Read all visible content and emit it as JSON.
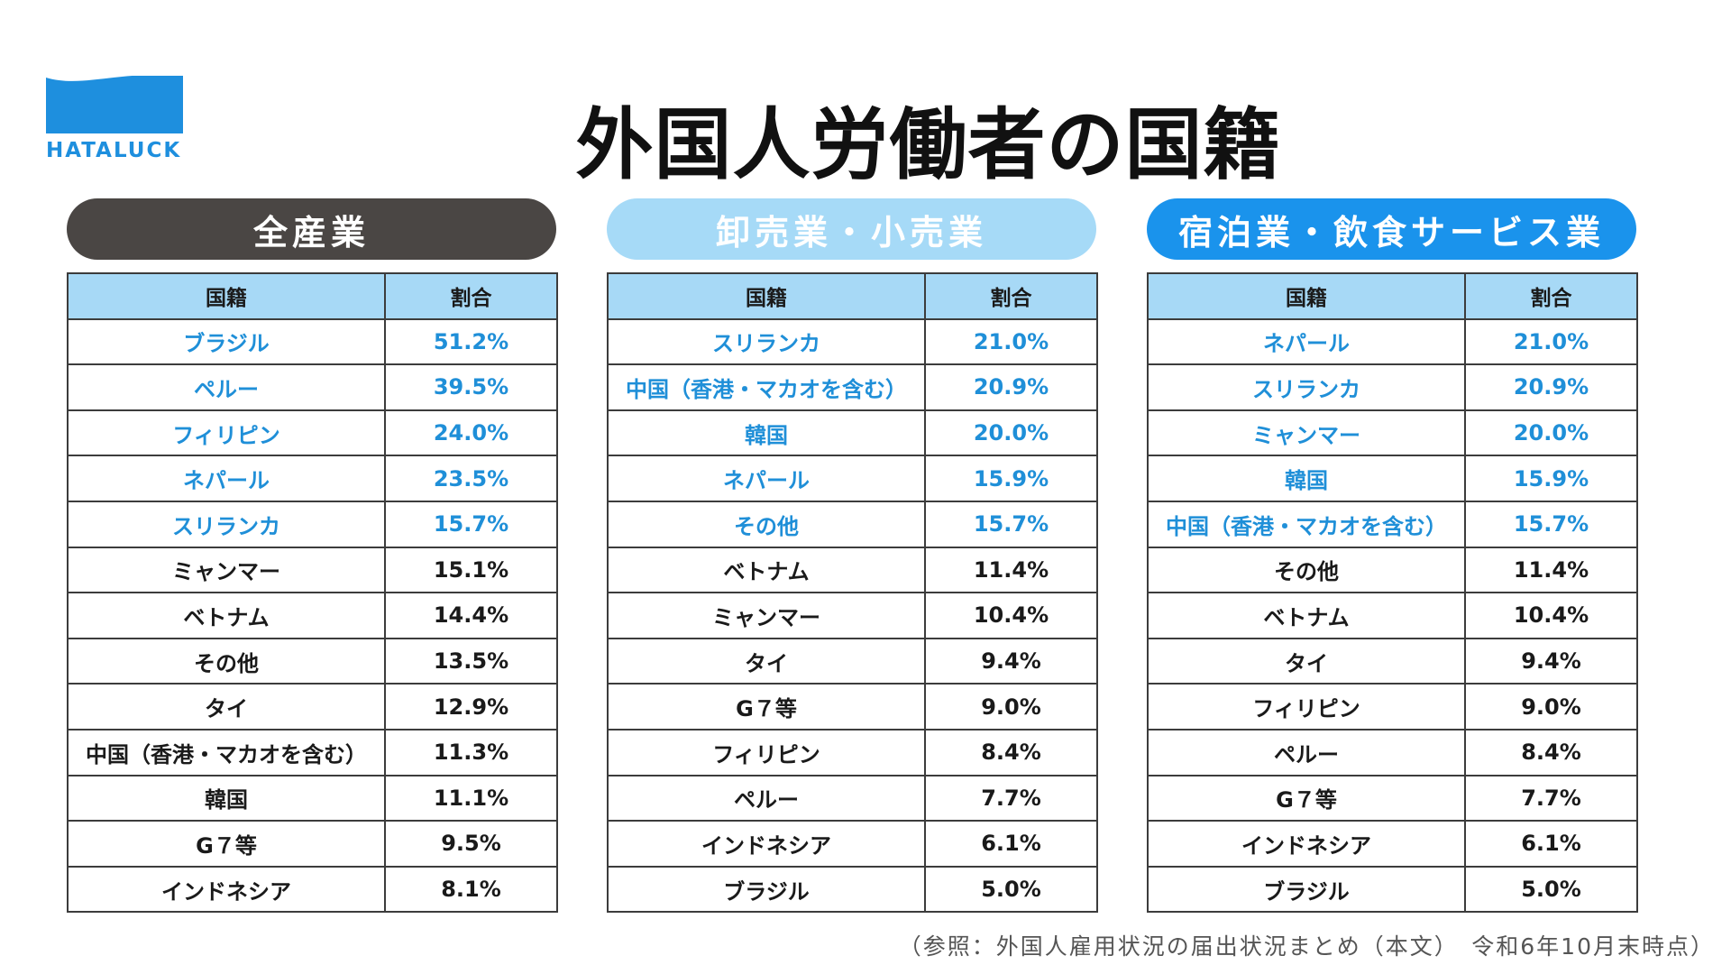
{
  "logo": {
    "text": "HATALUCK",
    "color": "#1e8fde"
  },
  "title": "外国人労働者の国籍",
  "highlight_color": "#1f8fd8",
  "tables": [
    {
      "heading": "全産業",
      "columns": [
        "国籍",
        "割合"
      ],
      "rows": [
        {
          "country": "ブラジル",
          "share": "51.2%",
          "highlight": true
        },
        {
          "country": "ペルー",
          "share": "39.5%",
          "highlight": true
        },
        {
          "country": "フィリピン",
          "share": "24.0%",
          "highlight": true
        },
        {
          "country": "ネパール",
          "share": "23.5%",
          "highlight": true
        },
        {
          "country": "スリランカ",
          "share": "15.7%",
          "highlight": true
        },
        {
          "country": "ミャンマー",
          "share": "15.1%",
          "highlight": false
        },
        {
          "country": "ベトナム",
          "share": "14.4%",
          "highlight": false
        },
        {
          "country": "その他",
          "share": "13.5%",
          "highlight": false
        },
        {
          "country": "タイ",
          "share": "12.9%",
          "highlight": false
        },
        {
          "country": "中国（香港・マカオを含む）",
          "share": "11.3%",
          "highlight": false
        },
        {
          "country": "韓国",
          "share": "11.1%",
          "highlight": false
        },
        {
          "country": "G７等",
          "share": "9.5%",
          "highlight": false
        },
        {
          "country": "インドネシア",
          "share": "8.1%",
          "highlight": false
        }
      ]
    },
    {
      "heading": "卸売業・小売業",
      "columns": [
        "国籍",
        "割合"
      ],
      "rows": [
        {
          "country": "スリランカ",
          "share": "21.0%",
          "highlight": true
        },
        {
          "country": "中国（香港・マカオを含む）",
          "share": "20.9%",
          "highlight": true
        },
        {
          "country": "韓国",
          "share": "20.0%",
          "highlight": true
        },
        {
          "country": "ネパール",
          "share": "15.9%",
          "highlight": true
        },
        {
          "country": "その他",
          "share": "15.7%",
          "highlight": true
        },
        {
          "country": "ベトナム",
          "share": "11.4%",
          "highlight": false
        },
        {
          "country": "ミャンマー",
          "share": "10.4%",
          "highlight": false
        },
        {
          "country": "タイ",
          "share": "9.4%",
          "highlight": false
        },
        {
          "country": "G７等",
          "share": "9.0%",
          "highlight": false
        },
        {
          "country": "フィリピン",
          "share": "8.4%",
          "highlight": false
        },
        {
          "country": "ペルー",
          "share": "7.7%",
          "highlight": false
        },
        {
          "country": "インドネシア",
          "share": "6.1%",
          "highlight": false
        },
        {
          "country": "ブラジル",
          "share": "5.0%",
          "highlight": false
        }
      ]
    },
    {
      "heading": "宿泊業・飲食サービス業",
      "columns": [
        "国籍",
        "割合"
      ],
      "rows": [
        {
          "country": "ネパール",
          "share": "21.0%",
          "highlight": true
        },
        {
          "country": "スリランカ",
          "share": "20.9%",
          "highlight": true
        },
        {
          "country": "ミャンマー",
          "share": "20.0%",
          "highlight": true
        },
        {
          "country": "韓国",
          "share": "15.9%",
          "highlight": true
        },
        {
          "country": "中国（香港・マカオを含む）",
          "share": "15.7%",
          "highlight": true
        },
        {
          "country": "その他",
          "share": "11.4%",
          "highlight": false
        },
        {
          "country": "ベトナム",
          "share": "10.4%",
          "highlight": false
        },
        {
          "country": "タイ",
          "share": "9.4%",
          "highlight": false
        },
        {
          "country": "フィリピン",
          "share": "9.0%",
          "highlight": false
        },
        {
          "country": "ペルー",
          "share": "8.4%",
          "highlight": false
        },
        {
          "country": "G７等",
          "share": "7.7%",
          "highlight": false
        },
        {
          "country": "インドネシア",
          "share": "6.1%",
          "highlight": false
        },
        {
          "country": "ブラジル",
          "share": "5.0%",
          "highlight": false
        }
      ]
    }
  ],
  "source_note": "（参照：外国人雇用状況の届出状況まとめ（本文）　令和6年10月末時点）"
}
